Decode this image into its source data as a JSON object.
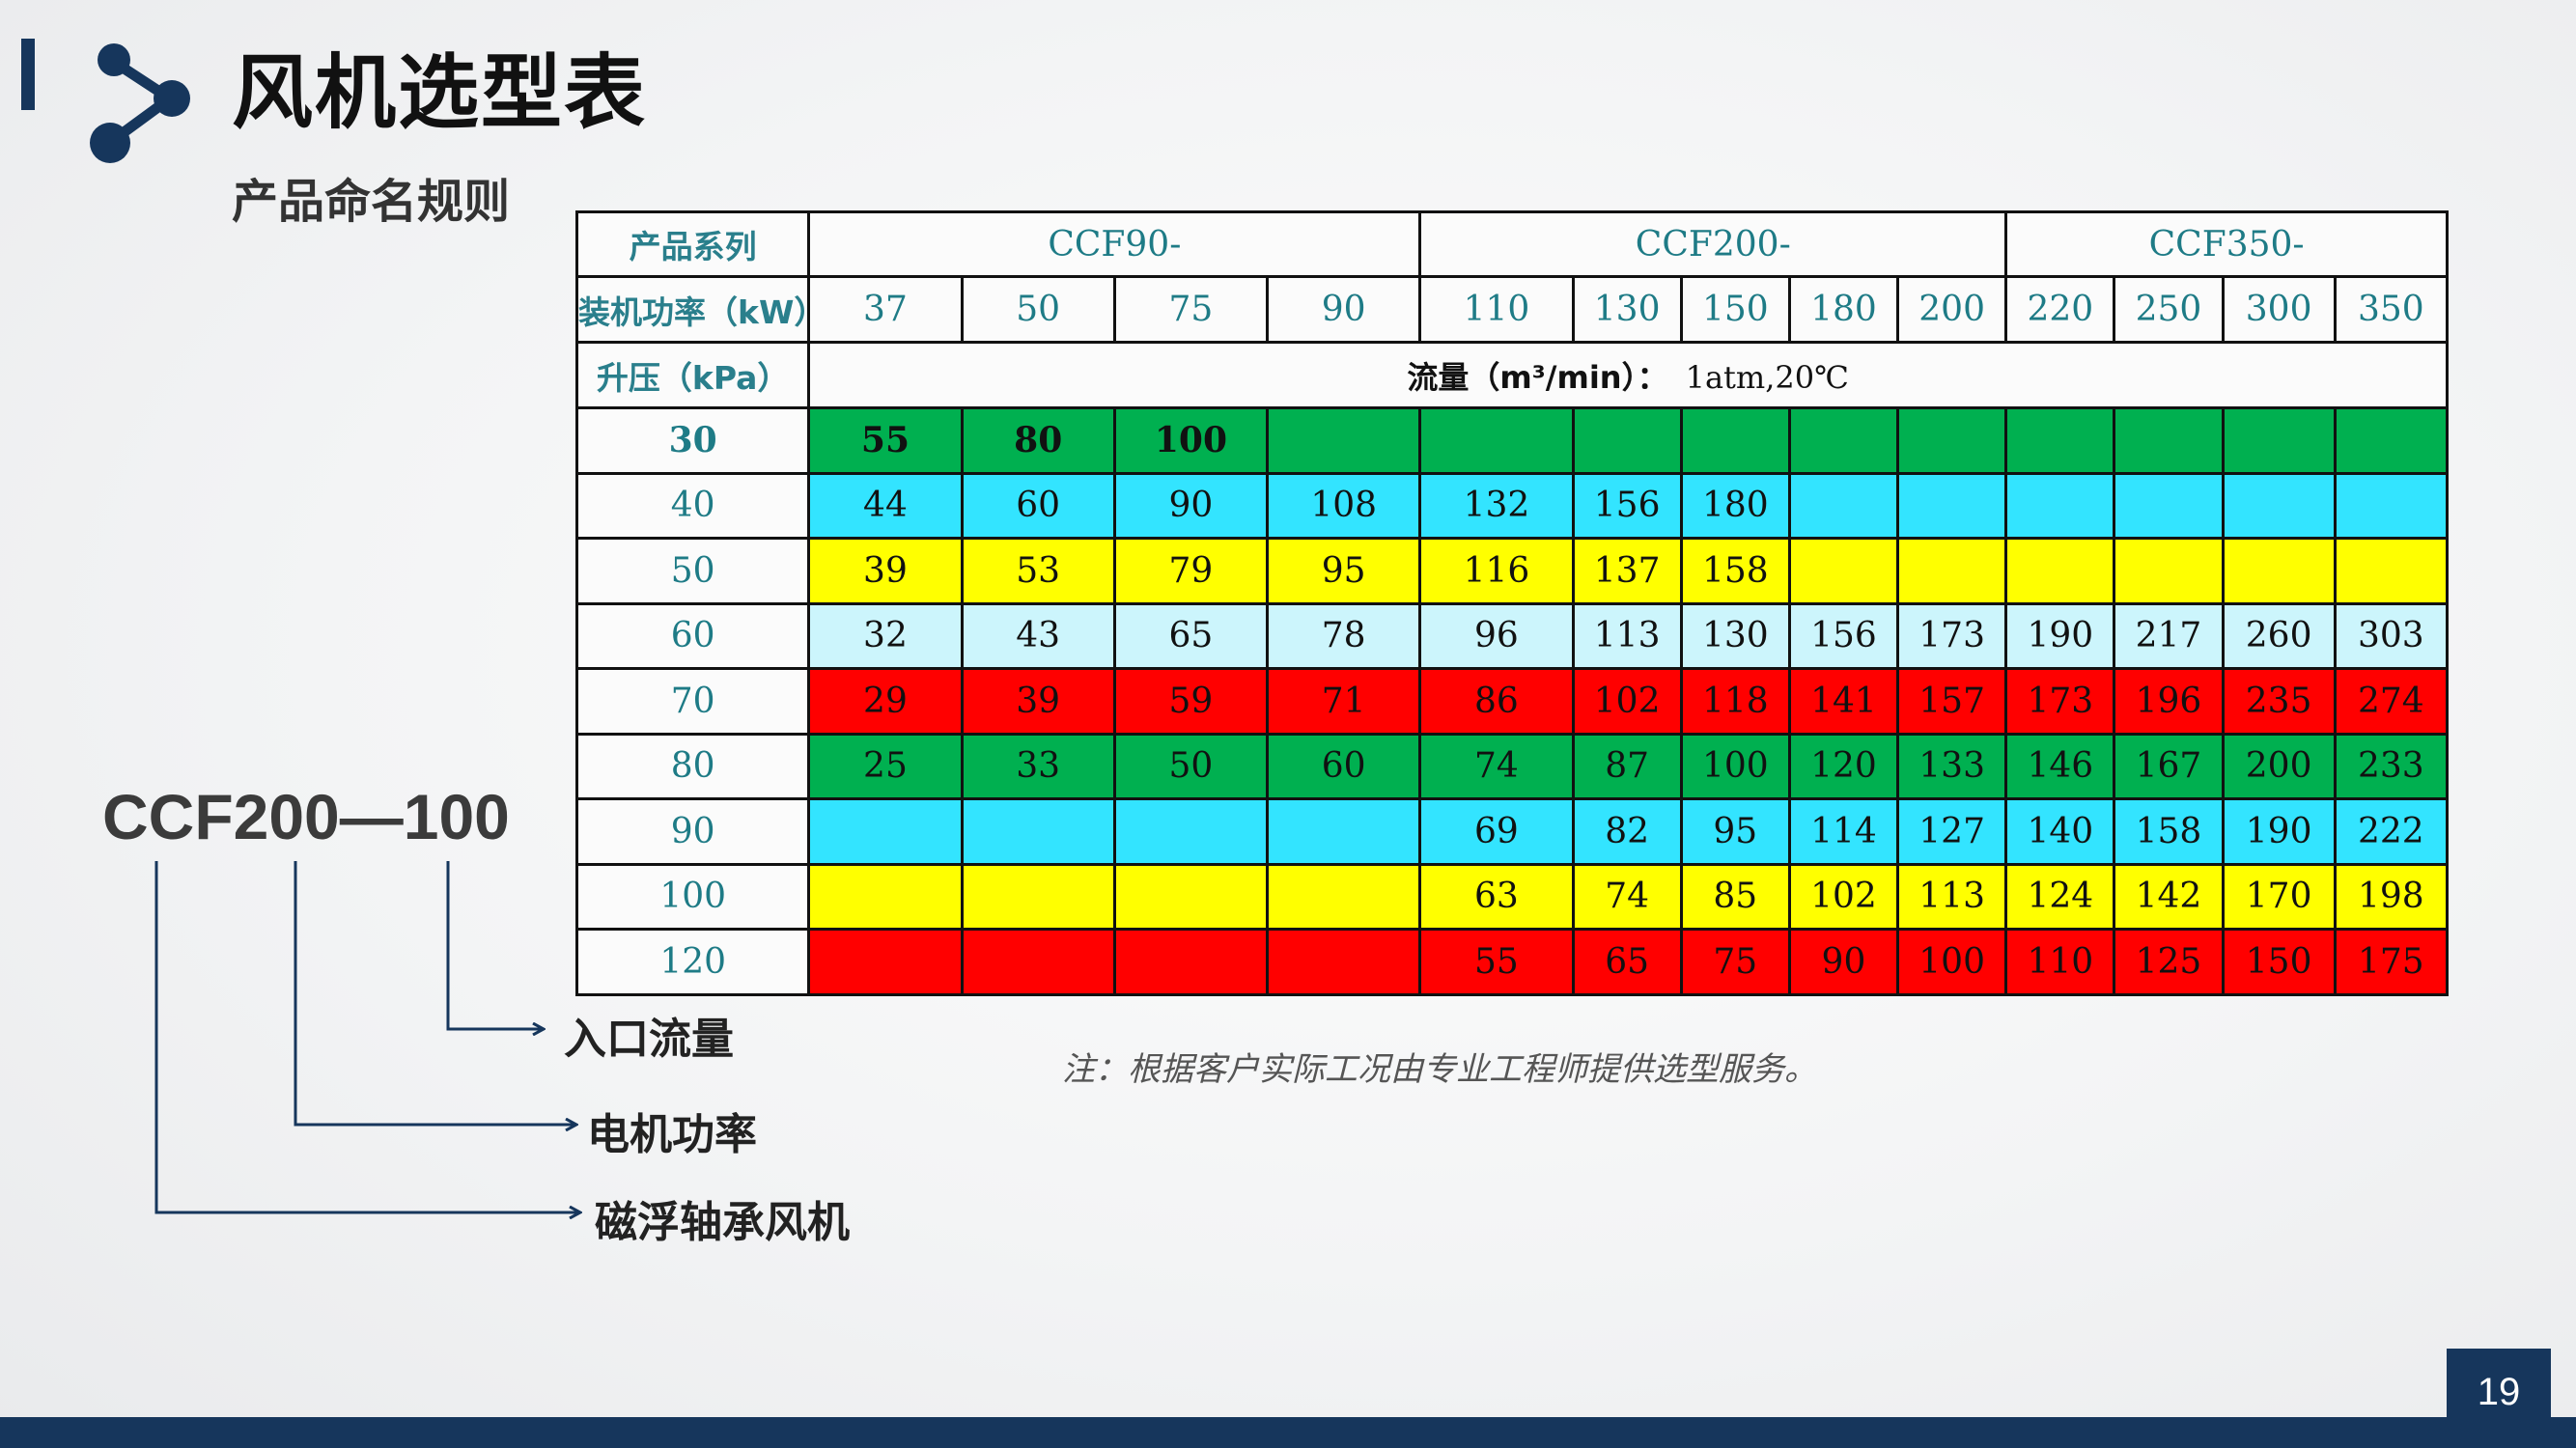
{
  "header": {
    "title": "风机选型表",
    "subtitle": "产品命名规则"
  },
  "table": {
    "label_series": "产品系列",
    "label_power": "装机功率（kW）",
    "label_pressure": "升压（kPa）",
    "flow_label": "流量（m³/min）：",
    "flow_condition": "1atm,20℃",
    "series": [
      {
        "name": "CCF90-",
        "span": 4
      },
      {
        "name": "CCF200-",
        "span": 5
      },
      {
        "name": "CCF350-",
        "span": 4
      }
    ],
    "powers": [
      "37",
      "50",
      "75",
      "90",
      "110",
      "130",
      "150",
      "180",
      "200",
      "220",
      "250",
      "300",
      "350"
    ],
    "rows": [
      {
        "pressure": "30",
        "color": "#00b050",
        "values": [
          "55",
          "80",
          "100",
          "",
          "",
          "",
          "",
          "",
          "",
          "",
          "",
          "",
          ""
        ]
      },
      {
        "pressure": "40",
        "color": "#33e4ff",
        "values": [
          "44",
          "60",
          "90",
          "108",
          "132",
          "156",
          "180",
          "",
          "",
          "",
          "",
          "",
          ""
        ]
      },
      {
        "pressure": "50",
        "color": "#ffff00",
        "values": [
          "39",
          "53",
          "79",
          "95",
          "116",
          "137",
          "158",
          "",
          "",
          "",
          "",
          "",
          ""
        ]
      },
      {
        "pressure": "60",
        "color": "#ccf5fc",
        "values": [
          "32",
          "43",
          "65",
          "78",
          "96",
          "113",
          "130",
          "156",
          "173",
          "190",
          "217",
          "260",
          "303"
        ]
      },
      {
        "pressure": "70",
        "color": "#ff0000",
        "values": [
          "29",
          "39",
          "59",
          "71",
          "86",
          "102",
          "118",
          "141",
          "157",
          "173",
          "196",
          "235",
          "274"
        ]
      },
      {
        "pressure": "80",
        "color": "#00b050",
        "values": [
          "25",
          "33",
          "50",
          "60",
          "74",
          "87",
          "100",
          "120",
          "133",
          "146",
          "167",
          "200",
          "233"
        ]
      },
      {
        "pressure": "90",
        "color": "#33e4ff",
        "values": [
          "",
          "",
          "",
          "",
          "69",
          "82",
          "95",
          "114",
          "127",
          "140",
          "158",
          "190",
          "222"
        ]
      },
      {
        "pressure": "100",
        "color": "#ffff00",
        "values": [
          "",
          "",
          "",
          "",
          "63",
          "74",
          "85",
          "102",
          "113",
          "124",
          "142",
          "170",
          "198"
        ]
      },
      {
        "pressure": "120",
        "color": "#ff0000",
        "values": [
          "",
          "",
          "",
          "",
          "55",
          "65",
          "75",
          "90",
          "100",
          "110",
          "125",
          "150",
          "175"
        ]
      }
    ]
  },
  "note": "注：根据客户实际工况由专业工程师提供选型服务。",
  "naming": {
    "code": "CCF200—100",
    "labels": [
      "入口流量",
      "电机功率",
      "磁浮轴承风机"
    ]
  },
  "footer": {
    "page_number": "19"
  },
  "colors": {
    "brand": "#16365c",
    "accent_text": "#1e7b86"
  }
}
